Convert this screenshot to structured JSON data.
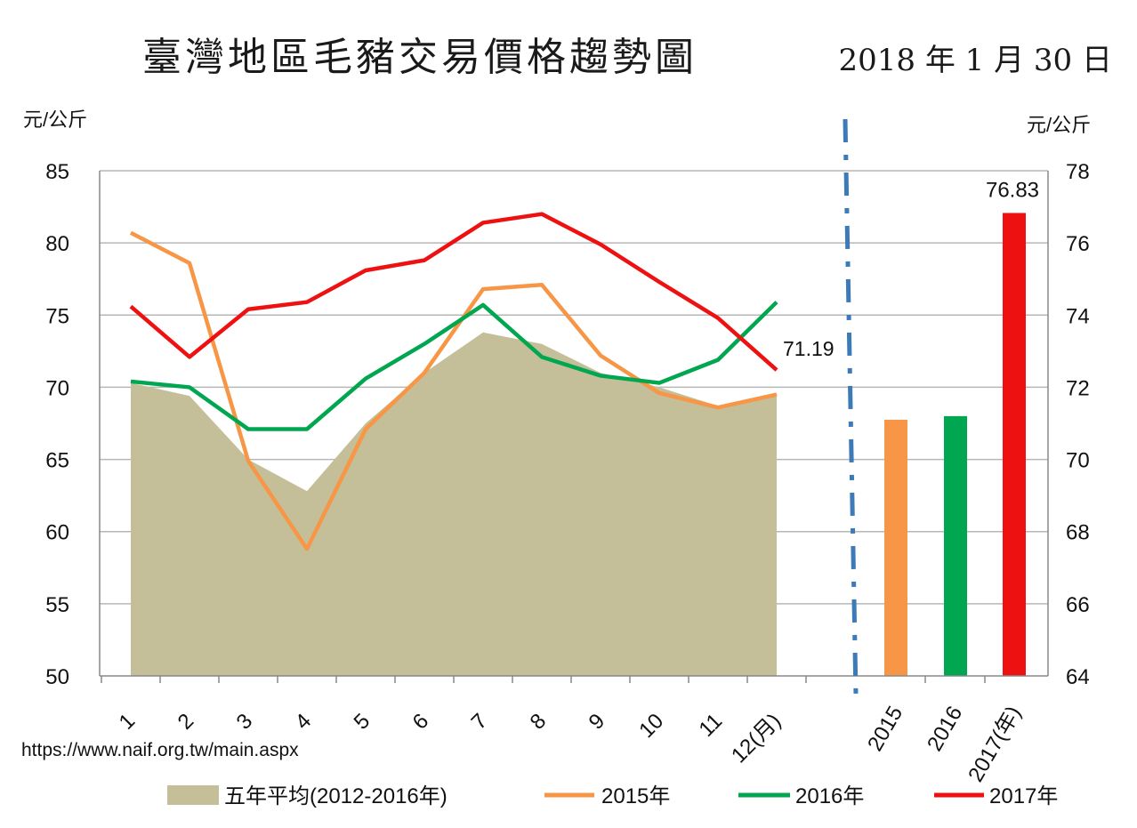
{
  "header": {
    "title": "臺灣地區毛豬交易價格趨勢圖",
    "date": "2018 年 1 月 30 日"
  },
  "source": "https://www.naif.org.tw/main.aspx",
  "colors": {
    "avg": "#c4bf98",
    "s2015": "#f79646",
    "s2016": "#00a650",
    "s2017": "#ee1111",
    "divider": "#3d7ab8",
    "grid": "#b7b7b7"
  },
  "chart_data": [
    {
      "type": "line",
      "ylabel": "元/公斤",
      "ylim": [
        50,
        85
      ],
      "yticks": [
        50,
        55,
        60,
        65,
        70,
        75,
        80,
        85
      ],
      "categories": [
        "1",
        "2",
        "3",
        "4",
        "5",
        "6",
        "7",
        "8",
        "9",
        "10",
        "11",
        "12(月)"
      ],
      "grid": true,
      "area": {
        "name": "五年平均(2012-2016年)",
        "values": [
          70.3,
          69.4,
          65.0,
          62.8,
          67.5,
          71.0,
          73.8,
          73.0,
          71.0,
          70.0,
          68.7,
          69.5
        ]
      },
      "series": [
        {
          "name": "2015年",
          "values": [
            80.7,
            78.6,
            64.9,
            58.8,
            67.1,
            71.0,
            76.8,
            77.1,
            72.2,
            69.6,
            68.6,
            69.5
          ]
        },
        {
          "name": "2016年",
          "values": [
            70.4,
            70.0,
            67.1,
            67.1,
            70.6,
            73.0,
            75.7,
            72.1,
            70.8,
            70.3,
            71.9,
            75.9
          ]
        },
        {
          "name": "2017年",
          "values": [
            75.6,
            72.1,
            75.4,
            75.9,
            78.1,
            78.8,
            81.4,
            82.0,
            79.9,
            77.3,
            74.8,
            71.19
          ]
        }
      ],
      "annotations": [
        "71.19"
      ]
    },
    {
      "type": "bar",
      "ylabel": "元/公斤",
      "ylim": [
        64,
        78
      ],
      "yticks": [
        64,
        66,
        68,
        70,
        72,
        74,
        76,
        78
      ],
      "categories": [
        "2015",
        "2016",
        "2017(年)"
      ],
      "values": [
        71.1,
        71.2,
        76.83
      ],
      "data_labels": [
        "",
        "",
        "76.83"
      ]
    }
  ],
  "legend": {
    "position": "bottom",
    "items": [
      "五年平均(2012-2016年)",
      "2015年",
      "2016年",
      "2017年"
    ]
  }
}
